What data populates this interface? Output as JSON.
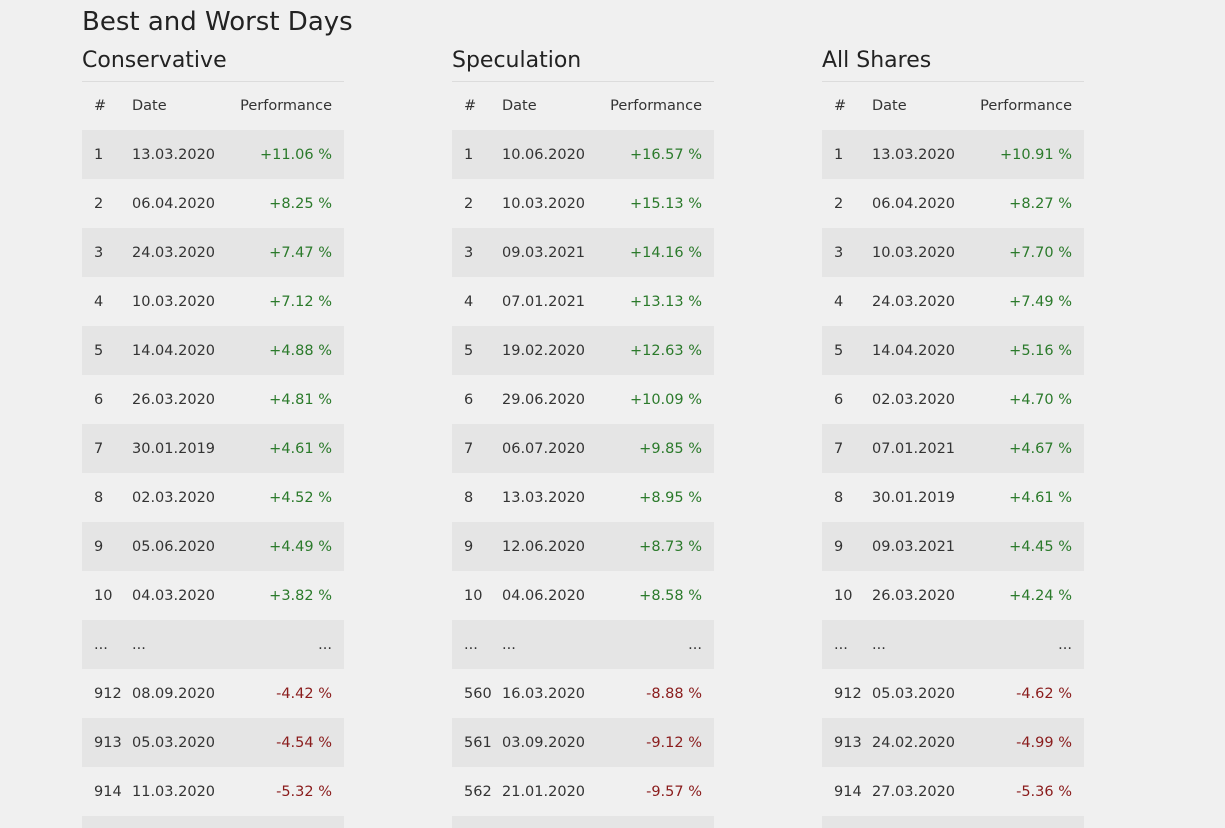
{
  "page": {
    "title": "Best and Worst Days"
  },
  "headers": {
    "num": "#",
    "date": "Date",
    "perf": "Performance"
  },
  "colors": {
    "positive": "#2b7a2b",
    "negative": "#8a1c1c",
    "row_stripe": "#e5e5e5",
    "background": "#f0f0f0"
  },
  "tables": [
    {
      "title": "Conservative",
      "rows": [
        {
          "num": "1",
          "date": "13.03.2020",
          "perf": "+11.06 %",
          "sign": "pos"
        },
        {
          "num": "2",
          "date": "06.04.2020",
          "perf": "+8.25 %",
          "sign": "pos"
        },
        {
          "num": "3",
          "date": "24.03.2020",
          "perf": "+7.47 %",
          "sign": "pos"
        },
        {
          "num": "4",
          "date": "10.03.2020",
          "perf": "+7.12 %",
          "sign": "pos"
        },
        {
          "num": "5",
          "date": "14.04.2020",
          "perf": "+4.88 %",
          "sign": "pos"
        },
        {
          "num": "6",
          "date": "26.03.2020",
          "perf": "+4.81 %",
          "sign": "pos"
        },
        {
          "num": "7",
          "date": "30.01.2019",
          "perf": "+4.61 %",
          "sign": "pos"
        },
        {
          "num": "8",
          "date": "02.03.2020",
          "perf": "+4.52 %",
          "sign": "pos"
        },
        {
          "num": "9",
          "date": "05.06.2020",
          "perf": "+4.49 %",
          "sign": "pos"
        },
        {
          "num": "10",
          "date": "04.03.2020",
          "perf": "+3.82 %",
          "sign": "pos"
        },
        {
          "num": "...",
          "date": "...",
          "perf": "...",
          "sign": "none"
        },
        {
          "num": "912",
          "date": "08.09.2020",
          "perf": "-4.42 %",
          "sign": "neg"
        },
        {
          "num": "913",
          "date": "05.03.2020",
          "perf": "-4.54 %",
          "sign": "neg"
        },
        {
          "num": "914",
          "date": "11.03.2020",
          "perf": "-5.32 %",
          "sign": "neg"
        },
        {
          "num": "",
          "date": "",
          "perf": "",
          "sign": "none"
        }
      ]
    },
    {
      "title": "Speculation",
      "rows": [
        {
          "num": "1",
          "date": "10.06.2020",
          "perf": "+16.57 %",
          "sign": "pos"
        },
        {
          "num": "2",
          "date": "10.03.2020",
          "perf": "+15.13 %",
          "sign": "pos"
        },
        {
          "num": "3",
          "date": "09.03.2021",
          "perf": "+14.16 %",
          "sign": "pos"
        },
        {
          "num": "4",
          "date": "07.01.2021",
          "perf": "+13.13 %",
          "sign": "pos"
        },
        {
          "num": "5",
          "date": "19.02.2020",
          "perf": "+12.63 %",
          "sign": "pos"
        },
        {
          "num": "6",
          "date": "29.06.2020",
          "perf": "+10.09 %",
          "sign": "pos"
        },
        {
          "num": "7",
          "date": "06.07.2020",
          "perf": "+9.85 %",
          "sign": "pos"
        },
        {
          "num": "8",
          "date": "13.03.2020",
          "perf": "+8.95 %",
          "sign": "pos"
        },
        {
          "num": "9",
          "date": "12.06.2020",
          "perf": "+8.73 %",
          "sign": "pos"
        },
        {
          "num": "10",
          "date": "04.06.2020",
          "perf": "+8.58 %",
          "sign": "pos"
        },
        {
          "num": "...",
          "date": "...",
          "perf": "...",
          "sign": "none"
        },
        {
          "num": "560",
          "date": "16.03.2020",
          "perf": "-8.88 %",
          "sign": "neg"
        },
        {
          "num": "561",
          "date": "03.09.2020",
          "perf": "-9.12 %",
          "sign": "neg"
        },
        {
          "num": "562",
          "date": "21.01.2020",
          "perf": "-9.57 %",
          "sign": "neg"
        },
        {
          "num": "",
          "date": "",
          "perf": "",
          "sign": "none"
        }
      ]
    },
    {
      "title": "All Shares",
      "rows": [
        {
          "num": "1",
          "date": "13.03.2020",
          "perf": "+10.91 %",
          "sign": "pos"
        },
        {
          "num": "2",
          "date": "06.04.2020",
          "perf": "+8.27 %",
          "sign": "pos"
        },
        {
          "num": "3",
          "date": "10.03.2020",
          "perf": "+7.70 %",
          "sign": "pos"
        },
        {
          "num": "4",
          "date": "24.03.2020",
          "perf": "+7.49 %",
          "sign": "pos"
        },
        {
          "num": "5",
          "date": "14.04.2020",
          "perf": "+5.16 %",
          "sign": "pos"
        },
        {
          "num": "6",
          "date": "02.03.2020",
          "perf": "+4.70 %",
          "sign": "pos"
        },
        {
          "num": "7",
          "date": "07.01.2021",
          "perf": "+4.67 %",
          "sign": "pos"
        },
        {
          "num": "8",
          "date": "30.01.2019",
          "perf": "+4.61 %",
          "sign": "pos"
        },
        {
          "num": "9",
          "date": "09.03.2021",
          "perf": "+4.45 %",
          "sign": "pos"
        },
        {
          "num": "10",
          "date": "26.03.2020",
          "perf": "+4.24 %",
          "sign": "pos"
        },
        {
          "num": "...",
          "date": "...",
          "perf": "...",
          "sign": "none"
        },
        {
          "num": "912",
          "date": "05.03.2020",
          "perf": "-4.62 %",
          "sign": "neg"
        },
        {
          "num": "913",
          "date": "24.02.2020",
          "perf": "-4.99 %",
          "sign": "neg"
        },
        {
          "num": "914",
          "date": "27.03.2020",
          "perf": "-5.36 %",
          "sign": "neg"
        },
        {
          "num": "",
          "date": "",
          "perf": "",
          "sign": "none"
        }
      ]
    }
  ]
}
